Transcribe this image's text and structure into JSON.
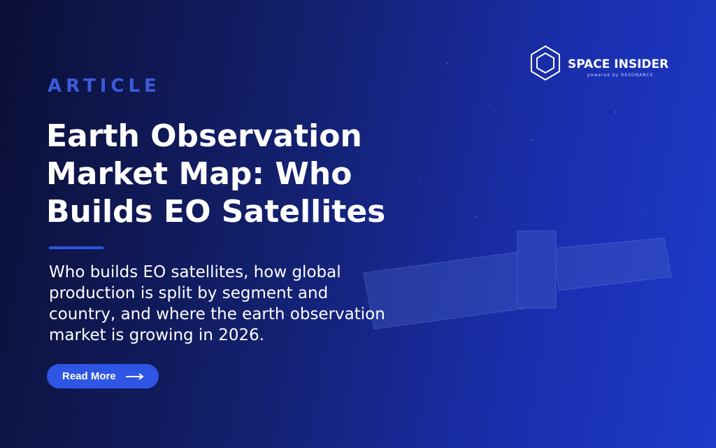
{
  "label": "ARTICLE",
  "title": "Earth Observation Market Map: Who Builds EO Satellites",
  "description": "Who builds EO satellites, how global production is split by segment and country, and where the earth observation market is growing in 2026.",
  "button": "Read More",
  "brand": {
    "name": "SPACE INSIDER",
    "tagline": "powered by RESONANCE"
  }
}
